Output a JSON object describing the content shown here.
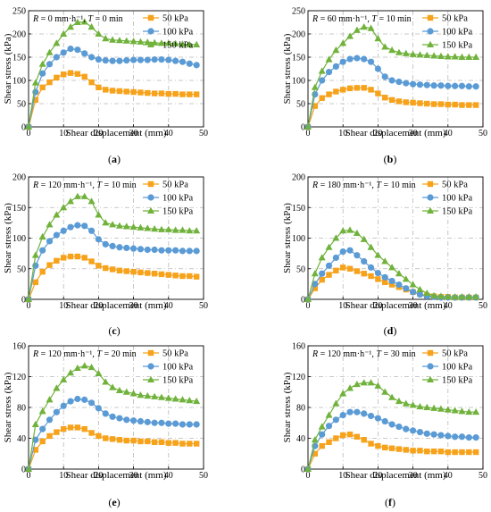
{
  "chart_data": [
    {
      "type": "line",
      "caption": "(a)",
      "annotation_r": "R = 0 mm·h⁻¹, ",
      "annotation_t": "T = 0 min",
      "xlabel": "Shear displacement (mm)",
      "ylabel": "Shear stress (kPa)",
      "xlim": [
        0,
        50
      ],
      "ylim": [
        0,
        250
      ],
      "xticks": [
        0,
        10,
        20,
        30,
        40,
        50
      ],
      "yticks": [
        0,
        50,
        100,
        150,
        200,
        250
      ],
      "grid": true,
      "legend": "top-right",
      "x": [
        0,
        2,
        4,
        6,
        8,
        10,
        12,
        14,
        16,
        18,
        20,
        22,
        24,
        26,
        28,
        30,
        32,
        34,
        36,
        38,
        40,
        42,
        44,
        46,
        48
      ],
      "series": [
        {
          "name": "50 kPa",
          "marker": "square",
          "color": "#f7a21b",
          "values": [
            0,
            58,
            85,
            96,
            106,
            113,
            116,
            114,
            108,
            96,
            85,
            80,
            78,
            77,
            76,
            75,
            74,
            73,
            72,
            72,
            71,
            71,
            70,
            70,
            70
          ]
        },
        {
          "name": "100 kPa",
          "marker": "circle",
          "color": "#5b9bd5",
          "values": [
            0,
            75,
            115,
            135,
            150,
            160,
            168,
            166,
            158,
            150,
            145,
            143,
            142,
            142,
            143,
            144,
            144,
            144,
            145,
            145,
            144,
            142,
            140,
            136,
            133
          ]
        },
        {
          "name": "150 kPa",
          "marker": "triangle",
          "color": "#70b23b",
          "values": [
            0,
            95,
            135,
            160,
            180,
            200,
            215,
            225,
            226,
            215,
            200,
            190,
            187,
            186,
            185,
            184,
            183,
            182,
            181,
            180,
            180,
            179,
            178,
            177,
            177
          ]
        }
      ]
    },
    {
      "type": "line",
      "caption": "(b)",
      "annotation_r": "R = 60 mm·h⁻¹, ",
      "annotation_t": "T = 10 min",
      "xlabel": "Shear displacement (mm)",
      "ylabel": "Shear stress (kPa)",
      "xlim": [
        0,
        50
      ],
      "ylim": [
        0,
        250
      ],
      "xticks": [
        0,
        10,
        20,
        30,
        40,
        50
      ],
      "yticks": [
        0,
        50,
        100,
        150,
        200,
        250
      ],
      "grid": true,
      "legend": "top-right",
      "x": [
        0,
        2,
        4,
        6,
        8,
        10,
        12,
        14,
        16,
        18,
        20,
        22,
        24,
        26,
        28,
        30,
        32,
        34,
        36,
        38,
        40,
        42,
        44,
        46,
        48
      ],
      "series": [
        {
          "name": "50 kPa",
          "marker": "square",
          "color": "#f7a21b",
          "values": [
            0,
            45,
            62,
            70,
            76,
            80,
            83,
            84,
            84,
            80,
            72,
            63,
            58,
            55,
            53,
            52,
            51,
            50,
            49,
            49,
            48,
            48,
            47,
            47,
            47
          ]
        },
        {
          "name": "100 kPa",
          "marker": "circle",
          "color": "#5b9bd5",
          "values": [
            0,
            70,
            100,
            118,
            130,
            140,
            146,
            148,
            146,
            140,
            125,
            108,
            100,
            97,
            94,
            92,
            91,
            90,
            89,
            89,
            88,
            88,
            88,
            87,
            87
          ]
        },
        {
          "name": "150 kPa",
          "marker": "triangle",
          "color": "#70b23b",
          "values": [
            0,
            85,
            120,
            145,
            165,
            180,
            195,
            208,
            215,
            212,
            190,
            172,
            165,
            160,
            158,
            156,
            155,
            154,
            153,
            152,
            151,
            151,
            150,
            150,
            150
          ]
        }
      ]
    },
    {
      "type": "line",
      "caption": "(c)",
      "annotation_r": "R = 120 mm·h⁻¹, ",
      "annotation_t": "T = 10 min",
      "xlabel": "Shear displacement (mm)",
      "ylabel": "Shear stress (kPa)",
      "xlim": [
        0,
        50
      ],
      "ylim": [
        0,
        200
      ],
      "xticks": [
        0,
        10,
        20,
        30,
        40,
        50
      ],
      "yticks": [
        0,
        50,
        100,
        150,
        200
      ],
      "grid": true,
      "legend": "top-right",
      "x": [
        0,
        2,
        4,
        6,
        8,
        10,
        12,
        14,
        16,
        18,
        20,
        22,
        24,
        26,
        28,
        30,
        32,
        34,
        36,
        38,
        40,
        42,
        44,
        46,
        48
      ],
      "series": [
        {
          "name": "50 kPa",
          "marker": "square",
          "color": "#f7a21b",
          "values": [
            0,
            28,
            45,
            56,
            63,
            68,
            70,
            70,
            68,
            62,
            55,
            51,
            49,
            47,
            46,
            45,
            44,
            43,
            42,
            41,
            40,
            39,
            38,
            38,
            37
          ]
        },
        {
          "name": "100 kPa",
          "marker": "circle",
          "color": "#5b9bd5",
          "values": [
            0,
            55,
            80,
            95,
            105,
            112,
            118,
            121,
            120,
            112,
            98,
            90,
            87,
            85,
            84,
            83,
            82,
            81,
            81,
            80,
            80,
            80,
            79,
            79,
            79
          ]
        },
        {
          "name": "150 kPa",
          "marker": "triangle",
          "color": "#70b23b",
          "values": [
            0,
            72,
            102,
            122,
            138,
            150,
            160,
            168,
            168,
            160,
            138,
            125,
            122,
            120,
            119,
            118,
            117,
            116,
            115,
            114,
            114,
            113,
            113,
            112,
            112
          ]
        }
      ]
    },
    {
      "type": "line",
      "caption": "(d)",
      "annotation_r": "R = 180 mm·h⁻¹, ",
      "annotation_t": "T = 10 min",
      "xlabel": "Shear displacement (mm)",
      "ylabel": "Shear stress (kPa)",
      "xlim": [
        0,
        50
      ],
      "ylim": [
        0,
        200
      ],
      "xticks": [
        0,
        10,
        20,
        30,
        40,
        50
      ],
      "yticks": [
        0,
        50,
        100,
        150,
        200
      ],
      "grid": true,
      "legend": "top-right",
      "x": [
        0,
        2,
        4,
        6,
        8,
        10,
        12,
        14,
        16,
        18,
        20,
        22,
        24,
        26,
        28,
        30,
        32,
        34,
        36,
        38,
        40,
        42,
        44,
        46,
        48
      ],
      "series": [
        {
          "name": "50 kPa",
          "marker": "square",
          "color": "#f7a21b",
          "values": [
            0,
            18,
            32,
            40,
            47,
            52,
            50,
            46,
            42,
            38,
            33,
            28,
            24,
            20,
            16,
            12,
            9,
            6,
            5,
            4,
            4,
            3,
            3,
            3,
            3
          ]
        },
        {
          "name": "100 kPa",
          "marker": "circle",
          "color": "#5b9bd5",
          "values": [
            0,
            25,
            42,
            55,
            68,
            78,
            80,
            72,
            62,
            52,
            43,
            36,
            30,
            24,
            18,
            12,
            8,
            5,
            4,
            3,
            3,
            3,
            3,
            3,
            3
          ]
        },
        {
          "name": "150 kPa",
          "marker": "triangle",
          "color": "#70b23b",
          "values": [
            0,
            42,
            68,
            85,
            100,
            112,
            113,
            108,
            98,
            85,
            72,
            62,
            52,
            42,
            33,
            24,
            16,
            10,
            6,
            5,
            4,
            4,
            4,
            4,
            4
          ]
        }
      ]
    },
    {
      "type": "line",
      "caption": "(e)",
      "annotation_r": "R = 120 mm·h⁻¹, ",
      "annotation_t": "T = 20 min",
      "xlabel": "Shear displacement (mm)",
      "ylabel": "Shear stress (kPa)",
      "xlim": [
        0,
        50
      ],
      "ylim": [
        0,
        160
      ],
      "xticks": [
        0,
        10,
        20,
        30,
        40,
        50
      ],
      "yticks": [
        0,
        40,
        80,
        120,
        160
      ],
      "grid": true,
      "legend": "top-right",
      "x": [
        0,
        2,
        4,
        6,
        8,
        10,
        12,
        14,
        16,
        18,
        20,
        22,
        24,
        26,
        28,
        30,
        32,
        34,
        36,
        38,
        40,
        42,
        44,
        46,
        48
      ],
      "series": [
        {
          "name": "50 kPa",
          "marker": "square",
          "color": "#f7a21b",
          "values": [
            0,
            25,
            36,
            43,
            48,
            52,
            54,
            54,
            52,
            47,
            43,
            40,
            39,
            38,
            37,
            37,
            36,
            36,
            35,
            35,
            34,
            34,
            33,
            33,
            33
          ]
        },
        {
          "name": "100 kPa",
          "marker": "circle",
          "color": "#5b9bd5",
          "values": [
            0,
            38,
            52,
            64,
            74,
            82,
            88,
            91,
            90,
            86,
            79,
            72,
            68,
            66,
            64,
            63,
            62,
            61,
            60,
            60,
            59,
            59,
            58,
            58,
            58
          ]
        },
        {
          "name": "150 kPa",
          "marker": "triangle",
          "color": "#70b23b",
          "values": [
            0,
            58,
            75,
            90,
            105,
            116,
            125,
            131,
            134,
            132,
            124,
            113,
            106,
            102,
            100,
            98,
            96,
            95,
            94,
            93,
            92,
            91,
            90,
            89,
            88
          ]
        }
      ]
    },
    {
      "type": "line",
      "caption": "(f)",
      "annotation_r": "R = 120 mm·h⁻¹, ",
      "annotation_t": "T = 30 min",
      "xlabel": "Shear displacement (mm)",
      "ylabel": "Shear stress (kPa)",
      "xlim": [
        0,
        50
      ],
      "ylim": [
        0,
        160
      ],
      "xticks": [
        0,
        10,
        20,
        30,
        40,
        50
      ],
      "yticks": [
        0,
        40,
        80,
        120,
        160
      ],
      "grid": true,
      "legend": "top-right",
      "x": [
        0,
        2,
        4,
        6,
        8,
        10,
        12,
        14,
        16,
        18,
        20,
        22,
        24,
        26,
        28,
        30,
        32,
        34,
        36,
        38,
        40,
        42,
        44,
        46,
        48
      ],
      "series": [
        {
          "name": "50 kPa",
          "marker": "square",
          "color": "#f7a21b",
          "values": [
            0,
            20,
            30,
            35,
            40,
            44,
            45,
            42,
            38,
            33,
            30,
            28,
            27,
            26,
            25,
            24,
            24,
            23,
            23,
            23,
            22,
            22,
            22,
            22,
            22
          ]
        },
        {
          "name": "100 kPa",
          "marker": "circle",
          "color": "#5b9bd5",
          "values": [
            0,
            30,
            45,
            56,
            64,
            70,
            74,
            74,
            72,
            69,
            66,
            62,
            58,
            55,
            52,
            50,
            48,
            46,
            45,
            44,
            43,
            42,
            42,
            41,
            41
          ]
        },
        {
          "name": "150 kPa",
          "marker": "triangle",
          "color": "#70b23b",
          "values": [
            0,
            38,
            55,
            70,
            85,
            98,
            105,
            110,
            112,
            112,
            108,
            100,
            93,
            88,
            85,
            83,
            81,
            80,
            79,
            78,
            77,
            76,
            75,
            74,
            74
          ]
        }
      ]
    }
  ]
}
